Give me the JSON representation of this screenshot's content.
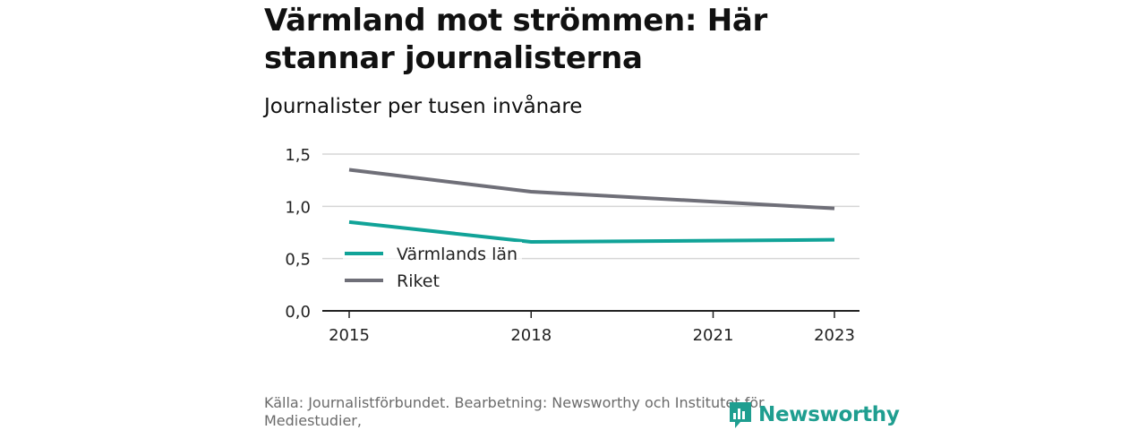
{
  "title": "Värmland mot strömmen: Här stannar journalisterna",
  "subtitle": "Journalister per tusen invånare",
  "source": "Källa: Journalistförbundet. Bearbetning: Newsworthy och Institutet för Mediestudier,",
  "logo_text": "Newsworthy",
  "chart_data": {
    "type": "line",
    "title": "Värmland mot strömmen: Här stannar journalisterna",
    "subtitle": "Journalister per tusen invånare",
    "x": [
      2015,
      2018,
      2023
    ],
    "xticks": [
      "2015",
      "2018",
      "2021",
      "2023"
    ],
    "xlim": [
      2015,
      2023
    ],
    "ylim": [
      0,
      1.5
    ],
    "yticks": [
      "0,0",
      "0,5",
      "1,0",
      "1,5"
    ],
    "grid": true,
    "legend_position": "left",
    "series": [
      {
        "name": "Värmlands län",
        "color": "#11a398",
        "values": [
          0.85,
          0.66,
          0.68
        ]
      },
      {
        "name": "Riket",
        "color": "#6f6f78",
        "values": [
          1.35,
          1.14,
          0.98
        ]
      }
    ]
  }
}
